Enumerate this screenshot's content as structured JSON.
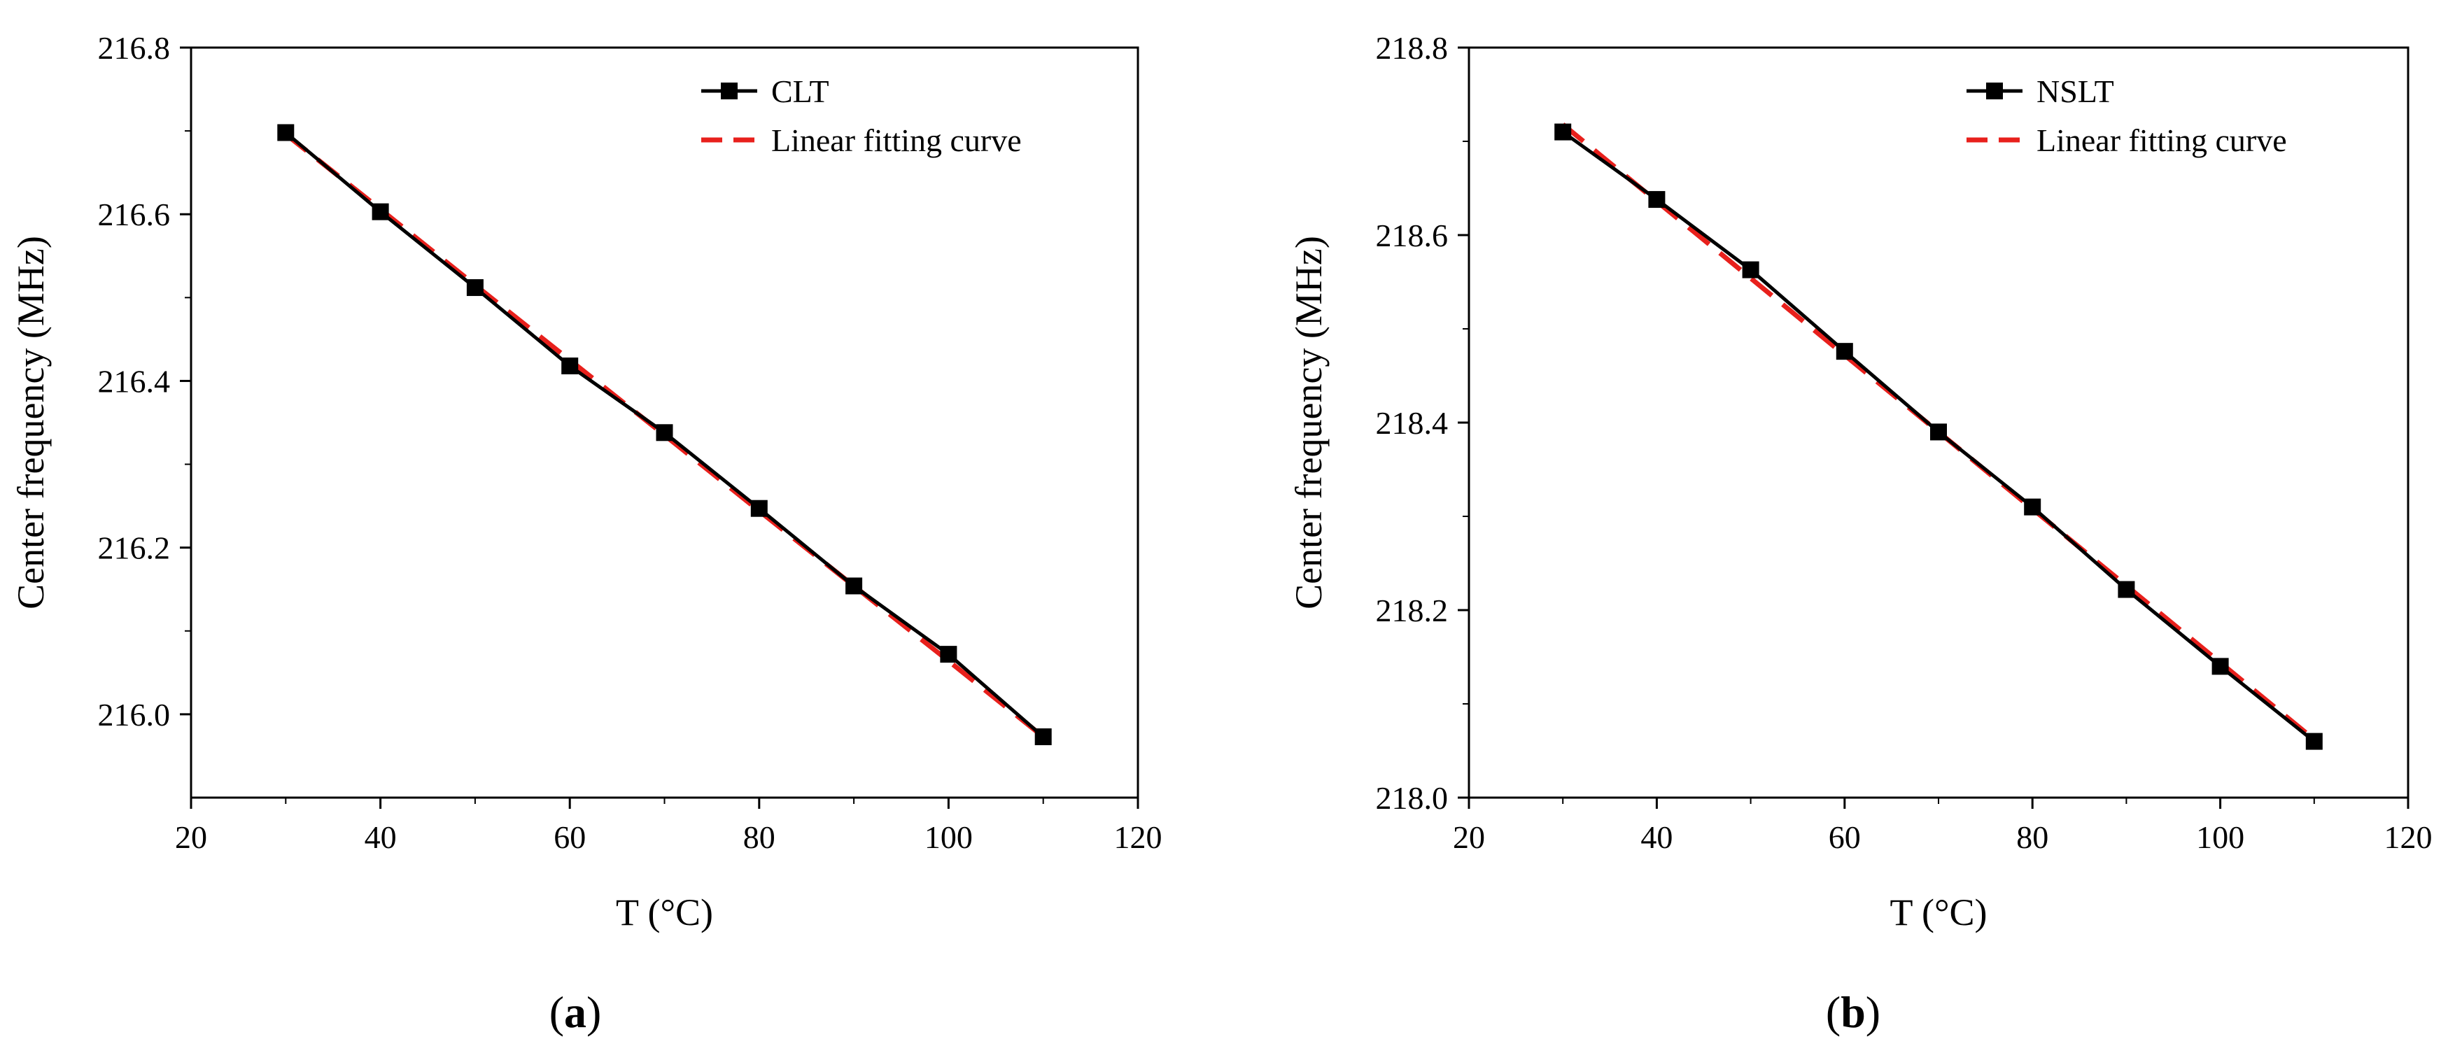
{
  "chart_data": [
    {
      "type": "line",
      "panel_label": "a",
      "xlabel": "T (°C)",
      "ylabel": "Center frequency (MHz)",
      "xlim": [
        20,
        120
      ],
      "ylim": [
        215.9,
        216.8
      ],
      "xticks": [
        20,
        40,
        60,
        80,
        100,
        120
      ],
      "yticks": [
        216.0,
        216.2,
        216.4,
        216.6,
        216.8
      ],
      "grid": false,
      "legend_position": "top-right",
      "x": [
        30,
        40,
        50,
        60,
        70,
        80,
        90,
        100,
        110
      ],
      "series": [
        {
          "name": "CLT",
          "style": "solid-line-square-markers",
          "color": "#000000",
          "values": [
            216.698,
            216.603,
            216.512,
            216.418,
            216.338,
            216.247,
            216.154,
            216.072,
            215.973
          ]
        },
        {
          "name": "Linear fitting curve",
          "style": "dashed-line",
          "color": "#e8201c",
          "values": [
            216.696,
            216.606,
            216.515,
            216.425,
            216.335,
            216.244,
            216.154,
            216.064,
            215.973
          ]
        }
      ]
    },
    {
      "type": "line",
      "panel_label": "b",
      "xlabel": "T (°C)",
      "ylabel": "Center frequency (MHz)",
      "xlim": [
        20,
        120
      ],
      "ylim": [
        218.0,
        218.8
      ],
      "xticks": [
        20,
        40,
        60,
        80,
        100,
        120
      ],
      "yticks": [
        218.0,
        218.2,
        218.4,
        218.6,
        218.8
      ],
      "grid": false,
      "legend_position": "top-right",
      "x": [
        30,
        40,
        50,
        60,
        70,
        80,
        90,
        100,
        110
      ],
      "series": [
        {
          "name": "NSLT",
          "style": "solid-line-square-markers",
          "color": "#000000",
          "values": [
            218.71,
            218.638,
            218.563,
            218.476,
            218.39,
            218.31,
            218.222,
            218.14,
            218.06
          ]
        },
        {
          "name": "Linear fitting curve",
          "style": "dashed-line",
          "color": "#e8201c",
          "values": [
            218.718,
            218.636,
            218.554,
            218.472,
            218.39,
            218.308,
            218.226,
            218.144,
            218.062
          ]
        }
      ]
    }
  ]
}
